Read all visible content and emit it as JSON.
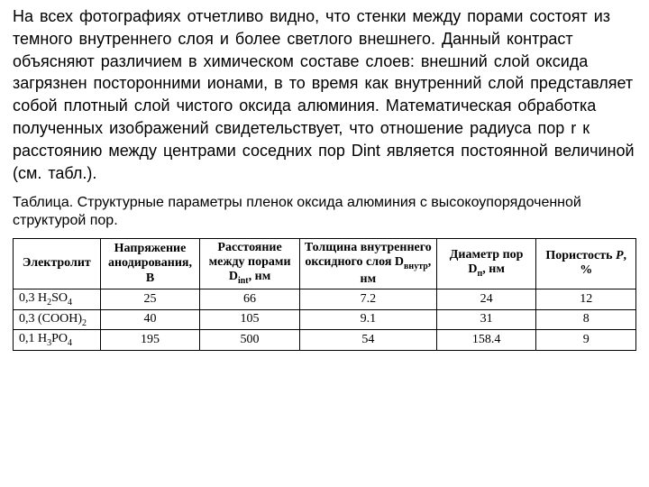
{
  "paragraph": "На  всех фотографиях  отчетливо видно,  что  стенки  между  порами  состоят  из  темного  внутреннего  слоя  и более  светлого внешнего.  Данный  контраст  объясняют различием  в  химическом  составе  слоев:  внешний слой оксида загрязнен посторонними ионами, в то время как внутренний слой представляет собой  плотный  слой чистого  оксида  алюминия.  Математическая  обработка полученных изображений свидетельствует, что отношение радиуса пор r к расстоянию между центрами соседних пор Dint является постоянной величиной (см. табл.).",
  "caption": "Таблица. Структурные параметры пленок оксида алюминия с высокоупорядоченной  структурой пор.",
  "table": {
    "type": "table",
    "column_widths_pct": [
      14,
      16,
      16,
      22,
      16,
      16
    ],
    "header_font": "Times New Roman",
    "header_fontsize": 14,
    "cell_fontsize": 14,
    "border_color": "#000000",
    "background_color": "#ffffff",
    "columns": [
      "Электролит",
      "Напряжение анодирования, В",
      "Расстояние между порами D_int, нм",
      "Толщина внутреннего оксидного слоя D_внутр, нм",
      "Диаметр пор D_п, нм",
      "Пористость P, %"
    ],
    "rows": [
      {
        "electrolyte": "0,3 H2SO4",
        "voltage": "25",
        "dint": "66",
        "dinner": "7.2",
        "dp": "24",
        "p": "12"
      },
      {
        "electrolyte": "0,3 (COOH)2",
        "voltage": "40",
        "dint": "105",
        "dinner": "9.1",
        "dp": "31",
        "p": "8"
      },
      {
        "electrolyte": "0,1 H3PO4",
        "voltage": "195",
        "dint": "500",
        "dinner": "54",
        "dp": "158.4",
        "p": "9"
      }
    ]
  }
}
